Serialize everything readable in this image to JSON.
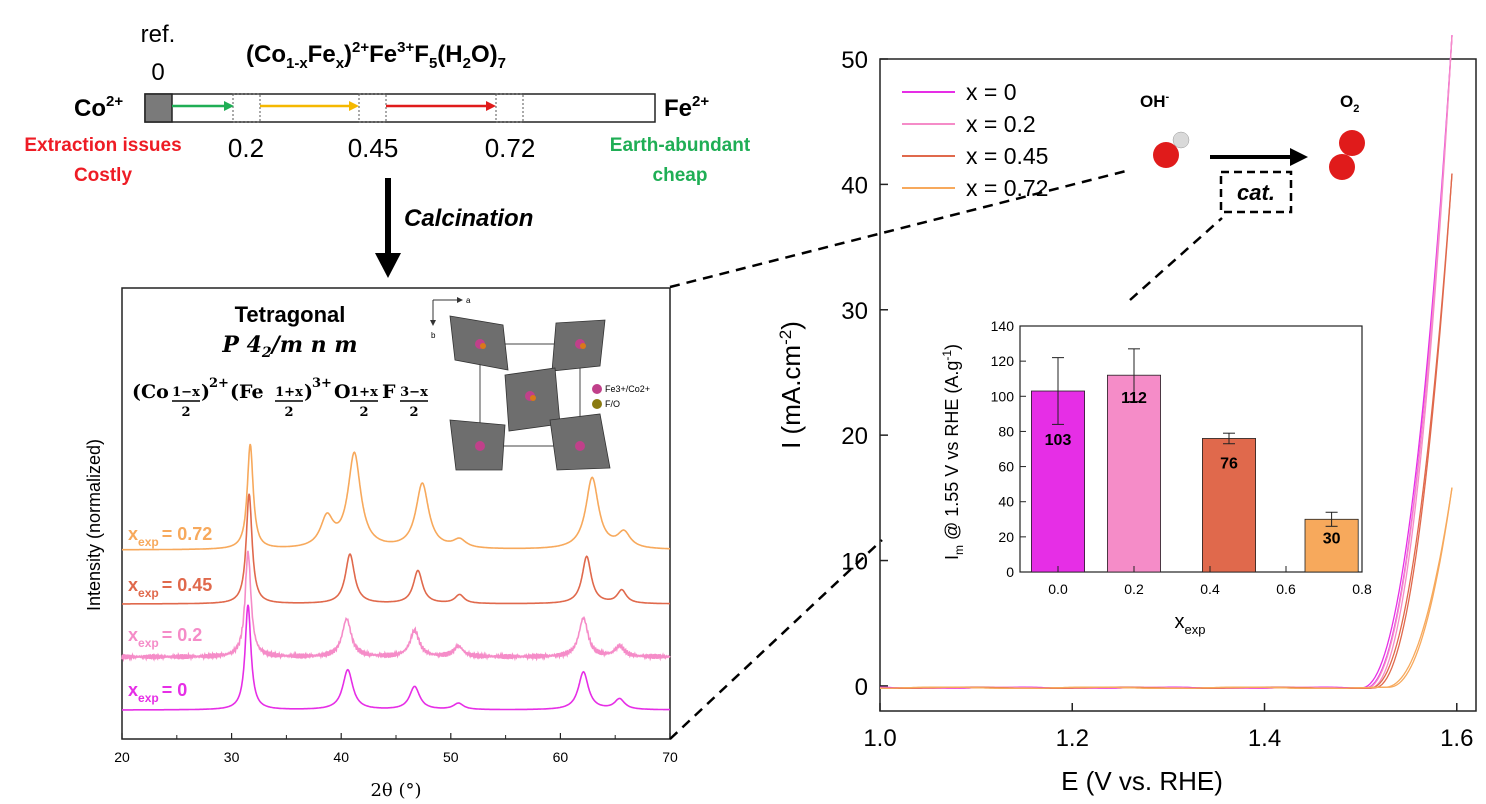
{
  "colors": {
    "x0": "#e62ee6",
    "x02": "#f58cc8",
    "x045": "#e0694c",
    "x072": "#f7a95c",
    "red": "#ee1c25",
    "green": "#1fae55",
    "arrow_green": "#1fae55",
    "arrow_yellow": "#f5b800",
    "arrow_red": "#e01b1b",
    "gray_poly": "#6e6e6e"
  },
  "scheme": {
    "ref_label": "ref.",
    "ref_zero": "0",
    "formula_parts": {
      "co": "(Co",
      "co_sub": "1-x",
      "fe": "Fe",
      "fe_sub": "x",
      "close": ")",
      "sup1": "2+",
      "fe3": "Fe",
      "sup2": "3+",
      "f": "F",
      "f_sub": "5",
      "h2o_open": "(H",
      "h2o_sub": "2",
      "h2o_close": "O)",
      "h2o_n": "7"
    },
    "left_ion": "Co",
    "left_ion_sup": "2+",
    "right_ion": "Fe",
    "right_ion_sup": "2+",
    "ticks": [
      "0.2",
      "0.45",
      "0.72"
    ],
    "left_note": [
      "Extraction issues",
      "Costly"
    ],
    "right_note": [
      "Earth-abundant",
      "cheap"
    ],
    "process": "Calcination"
  },
  "xrd": {
    "title": "Tetragonal",
    "space_group": "P 4",
    "space_group_sub": "2",
    "space_group_rest": "/m n m",
    "formula": "(Co(1−x)/2)2+(Fe(1+x)/2)3+O(1+x)/2F(3−x)/2",
    "formula_parts": {
      "co": "(Co",
      "frac1_num": "1−x",
      "frac_den": "2",
      "sup1": "2+",
      "fe": "(Fe",
      "frac2_num": "1+x",
      "sup2": "3+",
      "o": "O",
      "frac3_num": "1+x",
      "f": "F",
      "frac4_num": "3−x",
      "close": ")"
    },
    "xlabel": "2θ (°)",
    "ylabel": "Intensity (normalized)",
    "xlim": [
      20,
      70
    ],
    "xticks": [
      "20",
      "30",
      "40",
      "50",
      "60",
      "70"
    ],
    "crystal_axes": {
      "a": "a",
      "b": "b"
    },
    "crystal_legend": [
      "Fe3+/Co2+",
      "F/O"
    ],
    "series_labels": [
      {
        "main": "x",
        "sub": "exp",
        "value": "= 0.72"
      },
      {
        "main": "x",
        "sub": "exp",
        "value": "= 0.45"
      },
      {
        "main": "x",
        "sub": "exp",
        "value": "= 0.2"
      },
      {
        "main": "x",
        "sub": "exp",
        "value": "= 0"
      }
    ]
  },
  "reaction": {
    "reactant": "OH",
    "reactant_sup": "-",
    "product": "O",
    "product_sub": "2",
    "catalyst": "cat."
  },
  "chart_data": [
    {
      "type": "line",
      "xlabel": "2θ (°)",
      "ylabel": "Intensity (normalized)",
      "xlim": [
        20,
        70
      ],
      "series": [
        {
          "name": "xexp = 0.72",
          "peaks": [
            [
              31.7,
              1.0
            ],
            [
              38.7,
              0.28
            ],
            [
              41.2,
              0.9
            ],
            [
              47.4,
              0.62
            ],
            [
              50.8,
              0.08
            ],
            [
              62.9,
              0.68
            ],
            [
              65.8,
              0.15
            ]
          ]
        },
        {
          "name": "xexp = 0.45",
          "peaks": [
            [
              31.6,
              1.0
            ],
            [
              40.8,
              0.45
            ],
            [
              47.0,
              0.3
            ],
            [
              50.8,
              0.08
            ],
            [
              62.4,
              0.43
            ],
            [
              65.6,
              0.12
            ]
          ]
        },
        {
          "name": "xexp = 0.2",
          "peaks": [
            [
              31.5,
              1.0
            ],
            [
              40.5,
              0.36
            ],
            [
              46.7,
              0.25
            ],
            [
              50.7,
              0.1
            ],
            [
              62.1,
              0.37
            ],
            [
              65.4,
              0.1
            ]
          ]
        },
        {
          "name": "xexp = 0",
          "peaks": [
            [
              31.5,
              1.0
            ],
            [
              40.6,
              0.38
            ],
            [
              46.7,
              0.22
            ],
            [
              50.7,
              0.06
            ],
            [
              62.1,
              0.36
            ],
            [
              65.4,
              0.1
            ]
          ]
        }
      ]
    },
    {
      "type": "line",
      "xlabel": "E (V vs. RHE)",
      "ylabel": "I (mA.cm-2)",
      "xlim": [
        1.0,
        1.62
      ],
      "ylim": [
        -2,
        50
      ],
      "xticks": [
        "1.0",
        "1.2",
        "1.4",
        "1.6"
      ],
      "yticks": [
        "0",
        "10",
        "20",
        "30",
        "40",
        "50"
      ],
      "legend": [
        "x = 0",
        "x = 0.2",
        "x = 0.45",
        "x = 0.72"
      ],
      "series": [
        {
          "name": "x = 0",
          "onset": 1.5,
          "end_value": 52
        },
        {
          "name": "x = 0.2",
          "onset": 1.505,
          "end_value": 52
        },
        {
          "name": "x = 0.45",
          "onset": 1.51,
          "end_value": 41
        },
        {
          "name": "x = 0.72",
          "onset": 1.525,
          "end_value": 16
        }
      ]
    },
    {
      "type": "bar",
      "xlabel": "xexp",
      "ylabel": "Im @ 1.55 V vs RHE (A.g-1)",
      "xlim": [
        -0.1,
        0.8
      ],
      "ylim": [
        0,
        140
      ],
      "xticks": [
        "0.0",
        "0.2",
        "0.4",
        "0.6",
        "0.8"
      ],
      "yticks": [
        "0",
        "20",
        "40",
        "60",
        "80",
        "100",
        "120",
        "140"
      ],
      "x": [
        0.0,
        0.2,
        0.45,
        0.72
      ],
      "values": [
        103,
        112,
        76,
        30
      ],
      "errors": [
        19,
        15,
        3,
        4
      ],
      "data_labels": [
        "103",
        "112",
        "76",
        "30"
      ]
    }
  ]
}
